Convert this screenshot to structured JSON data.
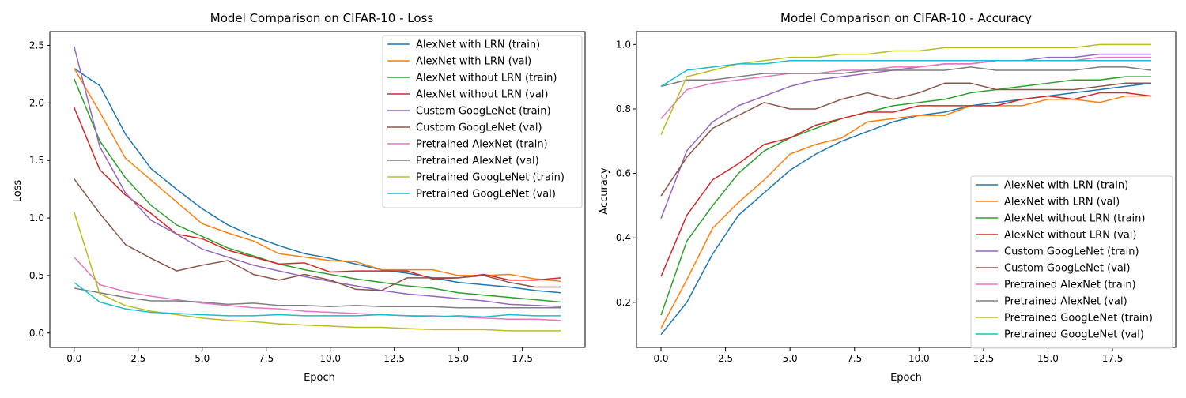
{
  "colors": [
    "#1f77b4",
    "#ff7f0e",
    "#2ca02c",
    "#d62728",
    "#9467bd",
    "#8c564b",
    "#e377c2",
    "#7f7f7f",
    "#bcbd22",
    "#17becf"
  ],
  "chart_data": [
    {
      "type": "line",
      "title": "Model Comparison on CIFAR-10 - Loss",
      "xlabel": "Epoch",
      "ylabel": "Loss",
      "xlim": [
        -0.95,
        19.95
      ],
      "ylim": [
        -0.125,
        2.62
      ],
      "xticks": [
        0,
        2.5,
        5,
        7.5,
        10,
        12.5,
        15,
        17.5
      ],
      "xtick_labels": [
        "0.0",
        "2.5",
        "5.0",
        "7.5",
        "10.0",
        "12.5",
        "15.0",
        "17.5"
      ],
      "yticks": [
        0,
        0.5,
        1,
        1.5,
        2,
        2.5
      ],
      "ytick_labels": [
        "0.0",
        "0.5",
        "1.0",
        "1.5",
        "2.0",
        "2.5"
      ],
      "legend_position": "upper-right",
      "grid": false,
      "x": [
        0,
        1,
        2,
        3,
        4,
        5,
        6,
        7,
        8,
        9,
        10,
        11,
        12,
        13,
        14,
        15,
        16,
        17,
        18,
        19
      ],
      "series": [
        {
          "name": "AlexNet with LRN (train)",
          "values": [
            2.3,
            2.15,
            1.73,
            1.43,
            1.25,
            1.08,
            0.94,
            0.84,
            0.76,
            0.69,
            0.65,
            0.6,
            0.55,
            0.52,
            0.48,
            0.44,
            0.42,
            0.4,
            0.37,
            0.35
          ]
        },
        {
          "name": "AlexNet with LRN (val)",
          "values": [
            2.3,
            1.92,
            1.52,
            1.33,
            1.14,
            0.95,
            0.87,
            0.8,
            0.69,
            0.66,
            0.63,
            0.62,
            0.55,
            0.55,
            0.55,
            0.5,
            0.5,
            0.51,
            0.47,
            0.45
          ]
        },
        {
          "name": "AlexNet without LRN (train)",
          "values": [
            2.21,
            1.67,
            1.35,
            1.11,
            0.94,
            0.84,
            0.74,
            0.67,
            0.6,
            0.55,
            0.51,
            0.47,
            0.44,
            0.41,
            0.39,
            0.35,
            0.33,
            0.31,
            0.29,
            0.27
          ]
        },
        {
          "name": "AlexNet without LRN (val)",
          "values": [
            1.96,
            1.42,
            1.2,
            1.04,
            0.86,
            0.82,
            0.72,
            0.66,
            0.6,
            0.61,
            0.53,
            0.54,
            0.54,
            0.54,
            0.47,
            0.48,
            0.51,
            0.46,
            0.46,
            0.48
          ]
        },
        {
          "name": "Custom GoogLeNet (train)",
          "values": [
            2.49,
            1.62,
            1.22,
            0.98,
            0.86,
            0.73,
            0.66,
            0.59,
            0.54,
            0.49,
            0.45,
            0.41,
            0.37,
            0.34,
            0.32,
            0.3,
            0.28,
            0.25,
            0.24,
            0.23
          ]
        },
        {
          "name": "Custom GoogLeNet (val)",
          "values": [
            1.34,
            1.04,
            0.77,
            0.65,
            0.54,
            0.59,
            0.63,
            0.51,
            0.46,
            0.51,
            0.46,
            0.38,
            0.37,
            0.48,
            0.48,
            0.48,
            0.5,
            0.44,
            0.4,
            0.4
          ]
        },
        {
          "name": "Pretrained AlexNet (train)",
          "values": [
            0.66,
            0.42,
            0.36,
            0.32,
            0.29,
            0.26,
            0.24,
            0.22,
            0.21,
            0.19,
            0.18,
            0.17,
            0.16,
            0.15,
            0.15,
            0.14,
            0.13,
            0.12,
            0.12,
            0.11
          ]
        },
        {
          "name": "Pretrained AlexNet (val)",
          "values": [
            0.39,
            0.35,
            0.31,
            0.28,
            0.28,
            0.27,
            0.25,
            0.26,
            0.24,
            0.24,
            0.23,
            0.24,
            0.23,
            0.23,
            0.23,
            0.22,
            0.22,
            0.22,
            0.22,
            0.22
          ]
        },
        {
          "name": "Pretrained GoogLeNet (train)",
          "values": [
            1.05,
            0.34,
            0.24,
            0.19,
            0.16,
            0.13,
            0.11,
            0.1,
            0.08,
            0.07,
            0.06,
            0.05,
            0.05,
            0.04,
            0.03,
            0.03,
            0.03,
            0.02,
            0.02,
            0.02
          ]
        },
        {
          "name": "Pretrained GoogLeNet (val)",
          "values": [
            0.44,
            0.27,
            0.21,
            0.18,
            0.17,
            0.16,
            0.15,
            0.15,
            0.16,
            0.15,
            0.15,
            0.15,
            0.16,
            0.15,
            0.14,
            0.15,
            0.14,
            0.16,
            0.15,
            0.15
          ]
        }
      ]
    },
    {
      "type": "line",
      "title": "Model Comparison on CIFAR-10 - Accuracy",
      "xlabel": "Epoch",
      "ylabel": "Accuracy",
      "xlim": [
        -0.95,
        19.95
      ],
      "ylim": [
        0.06,
        1.04
      ],
      "xticks": [
        0,
        2.5,
        5,
        7.5,
        10,
        12.5,
        15,
        17.5
      ],
      "xtick_labels": [
        "0.0",
        "2.5",
        "5.0",
        "7.5",
        "10.0",
        "12.5",
        "15.0",
        "17.5"
      ],
      "yticks": [
        0.2,
        0.4,
        0.6,
        0.8,
        1.0
      ],
      "ytick_labels": [
        "0.2",
        "0.4",
        "0.6",
        "0.8",
        "1.0"
      ],
      "legend_position": "lower-right",
      "grid": false,
      "x": [
        0,
        1,
        2,
        3,
        4,
        5,
        6,
        7,
        8,
        9,
        10,
        11,
        12,
        13,
        14,
        15,
        16,
        17,
        18,
        19
      ],
      "series": [
        {
          "name": "AlexNet with LRN (train)",
          "values": [
            0.1,
            0.2,
            0.35,
            0.47,
            0.54,
            0.61,
            0.66,
            0.7,
            0.73,
            0.76,
            0.78,
            0.79,
            0.81,
            0.82,
            0.83,
            0.84,
            0.85,
            0.86,
            0.87,
            0.88
          ]
        },
        {
          "name": "AlexNet with LRN (val)",
          "values": [
            0.12,
            0.27,
            0.43,
            0.51,
            0.58,
            0.66,
            0.69,
            0.71,
            0.76,
            0.77,
            0.78,
            0.78,
            0.81,
            0.81,
            0.81,
            0.83,
            0.83,
            0.82,
            0.84,
            0.84
          ]
        },
        {
          "name": "AlexNet without LRN (train)",
          "values": [
            0.16,
            0.39,
            0.5,
            0.6,
            0.67,
            0.71,
            0.74,
            0.77,
            0.79,
            0.81,
            0.82,
            0.83,
            0.85,
            0.86,
            0.87,
            0.88,
            0.89,
            0.89,
            0.9,
            0.9
          ]
        },
        {
          "name": "AlexNet without LRN (val)",
          "values": [
            0.28,
            0.47,
            0.58,
            0.63,
            0.69,
            0.71,
            0.75,
            0.77,
            0.79,
            0.79,
            0.81,
            0.81,
            0.81,
            0.81,
            0.83,
            0.84,
            0.83,
            0.85,
            0.85,
            0.84
          ]
        },
        {
          "name": "Custom GoogLeNet (train)",
          "values": [
            0.46,
            0.67,
            0.76,
            0.81,
            0.84,
            0.87,
            0.89,
            0.9,
            0.91,
            0.92,
            0.93,
            0.94,
            0.94,
            0.95,
            0.95,
            0.96,
            0.96,
            0.97,
            0.97,
            0.97
          ]
        },
        {
          "name": "Custom GoogLeNet (val)",
          "values": [
            0.53,
            0.65,
            0.74,
            0.78,
            0.82,
            0.8,
            0.8,
            0.83,
            0.85,
            0.83,
            0.85,
            0.88,
            0.88,
            0.86,
            0.86,
            0.86,
            0.86,
            0.87,
            0.88,
            0.88
          ]
        },
        {
          "name": "Pretrained AlexNet (train)",
          "values": [
            0.77,
            0.86,
            0.88,
            0.89,
            0.9,
            0.91,
            0.91,
            0.92,
            0.92,
            0.93,
            0.93,
            0.94,
            0.94,
            0.95,
            0.95,
            0.95,
            0.95,
            0.96,
            0.96,
            0.96
          ]
        },
        {
          "name": "Pretrained AlexNet (val)",
          "values": [
            0.87,
            0.89,
            0.89,
            0.9,
            0.91,
            0.91,
            0.91,
            0.91,
            0.92,
            0.92,
            0.92,
            0.92,
            0.93,
            0.92,
            0.92,
            0.92,
            0.92,
            0.93,
            0.93,
            0.92
          ]
        },
        {
          "name": "Pretrained GoogLeNet (train)",
          "values": [
            0.72,
            0.9,
            0.92,
            0.94,
            0.95,
            0.96,
            0.96,
            0.97,
            0.97,
            0.98,
            0.98,
            0.99,
            0.99,
            0.99,
            0.99,
            0.99,
            0.99,
            1.0,
            1.0,
            1.0
          ]
        },
        {
          "name": "Pretrained GoogLeNet (val)",
          "values": [
            0.87,
            0.92,
            0.93,
            0.94,
            0.94,
            0.95,
            0.95,
            0.95,
            0.95,
            0.95,
            0.95,
            0.95,
            0.95,
            0.95,
            0.95,
            0.95,
            0.95,
            0.95,
            0.95,
            0.95
          ]
        }
      ]
    }
  ]
}
